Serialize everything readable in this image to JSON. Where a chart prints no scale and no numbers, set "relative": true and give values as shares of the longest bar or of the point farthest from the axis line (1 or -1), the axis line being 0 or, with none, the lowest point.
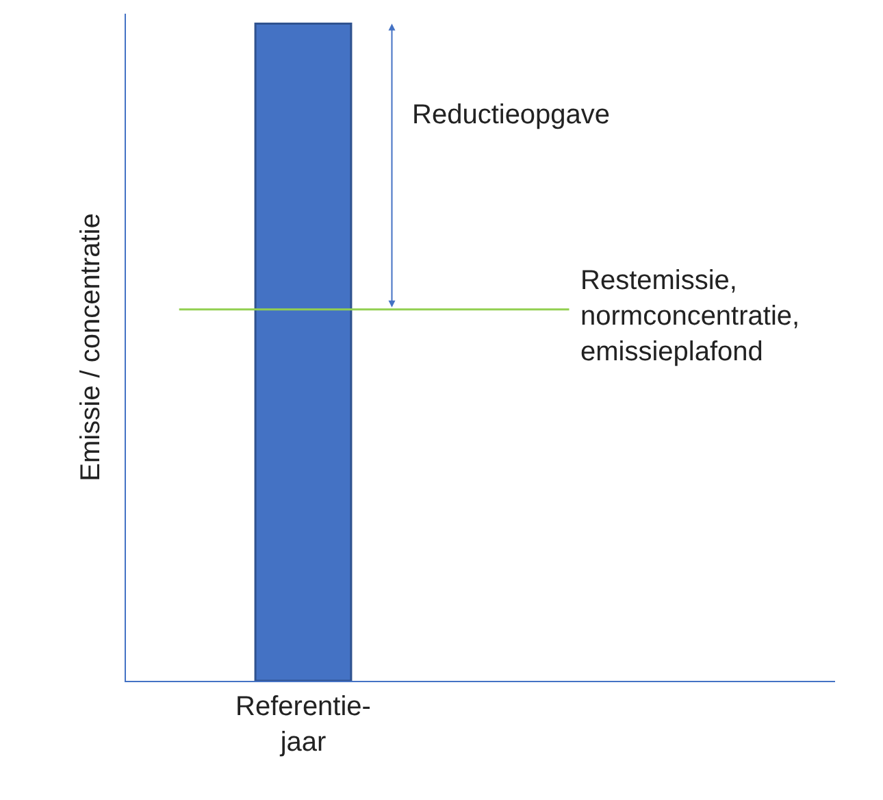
{
  "chart_data": {
    "type": "bar",
    "relative": true,
    "ylabel": "Emissie / concentratie",
    "categories": [
      "Referentie-\njaar"
    ],
    "series": [
      {
        "color": "#4472c4",
        "values": [
          1
        ]
      }
    ],
    "ref_lines": [
      {
        "axis": "y",
        "value": 0.565,
        "label": "Restemissie,\nnormconcentratie,\nemissieplafond",
        "color": "#92d050"
      }
    ],
    "annotations": [
      "Reductieopgave"
    ]
  }
}
